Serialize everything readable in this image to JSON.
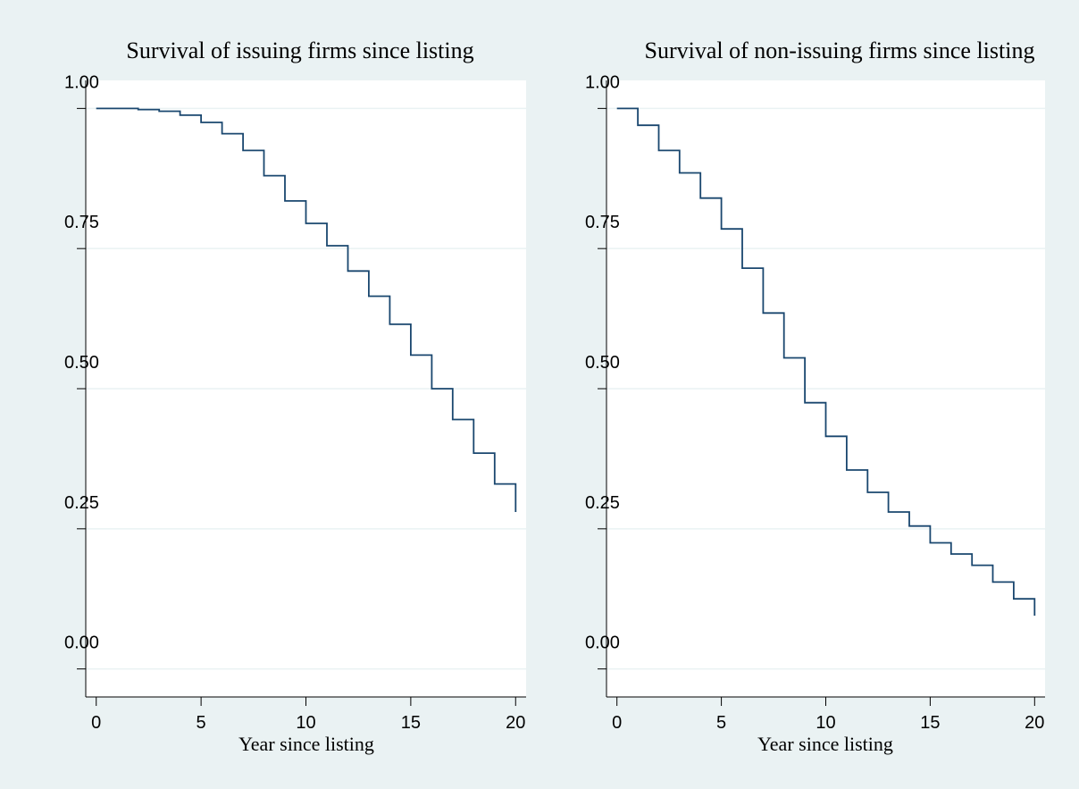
{
  "chart_data": [
    {
      "type": "line",
      "step": true,
      "title": "Survival of issuing firms since listing",
      "xlabel": "Year since listing",
      "ylabel": "",
      "xlim": [
        -0.5,
        20.5
      ],
      "ylim": [
        -0.05,
        1.05
      ],
      "x_ticks": [
        "0",
        "5",
        "10",
        "15",
        "20"
      ],
      "y_ticks": [
        "0.00",
        "0.25",
        "0.50",
        "0.75",
        "1.00"
      ],
      "grid": true,
      "series": [
        {
          "x": [
            0,
            1,
            2,
            3,
            4,
            5,
            6,
            7,
            8,
            9,
            10,
            11,
            12,
            13,
            14,
            15,
            16,
            17,
            18,
            19,
            20
          ],
          "values": [
            1.0,
            1.0,
            0.998,
            0.995,
            0.988,
            0.975,
            0.955,
            0.925,
            0.88,
            0.835,
            0.795,
            0.755,
            0.71,
            0.665,
            0.615,
            0.56,
            0.5,
            0.445,
            0.385,
            0.33,
            0.28
          ]
        }
      ]
    },
    {
      "type": "line",
      "step": true,
      "title": "Survival of non-issuing firms since listing",
      "xlabel": "Year since listing",
      "ylabel": "",
      "xlim": [
        -0.5,
        20.5
      ],
      "ylim": [
        -0.05,
        1.05
      ],
      "x_ticks": [
        "0",
        "5",
        "10",
        "15",
        "20"
      ],
      "y_ticks": [
        "0.00",
        "0.25",
        "0.50",
        "0.75",
        "1.00"
      ],
      "grid": true,
      "series": [
        {
          "x": [
            0,
            1,
            2,
            3,
            4,
            5,
            6,
            7,
            8,
            9,
            10,
            11,
            12,
            13,
            14,
            15,
            16,
            17,
            18,
            19,
            20
          ],
          "values": [
            1.0,
            0.97,
            0.925,
            0.885,
            0.84,
            0.785,
            0.715,
            0.635,
            0.555,
            0.475,
            0.415,
            0.355,
            0.315,
            0.28,
            0.255,
            0.225,
            0.205,
            0.185,
            0.155,
            0.125,
            0.095
          ]
        }
      ]
    }
  ]
}
